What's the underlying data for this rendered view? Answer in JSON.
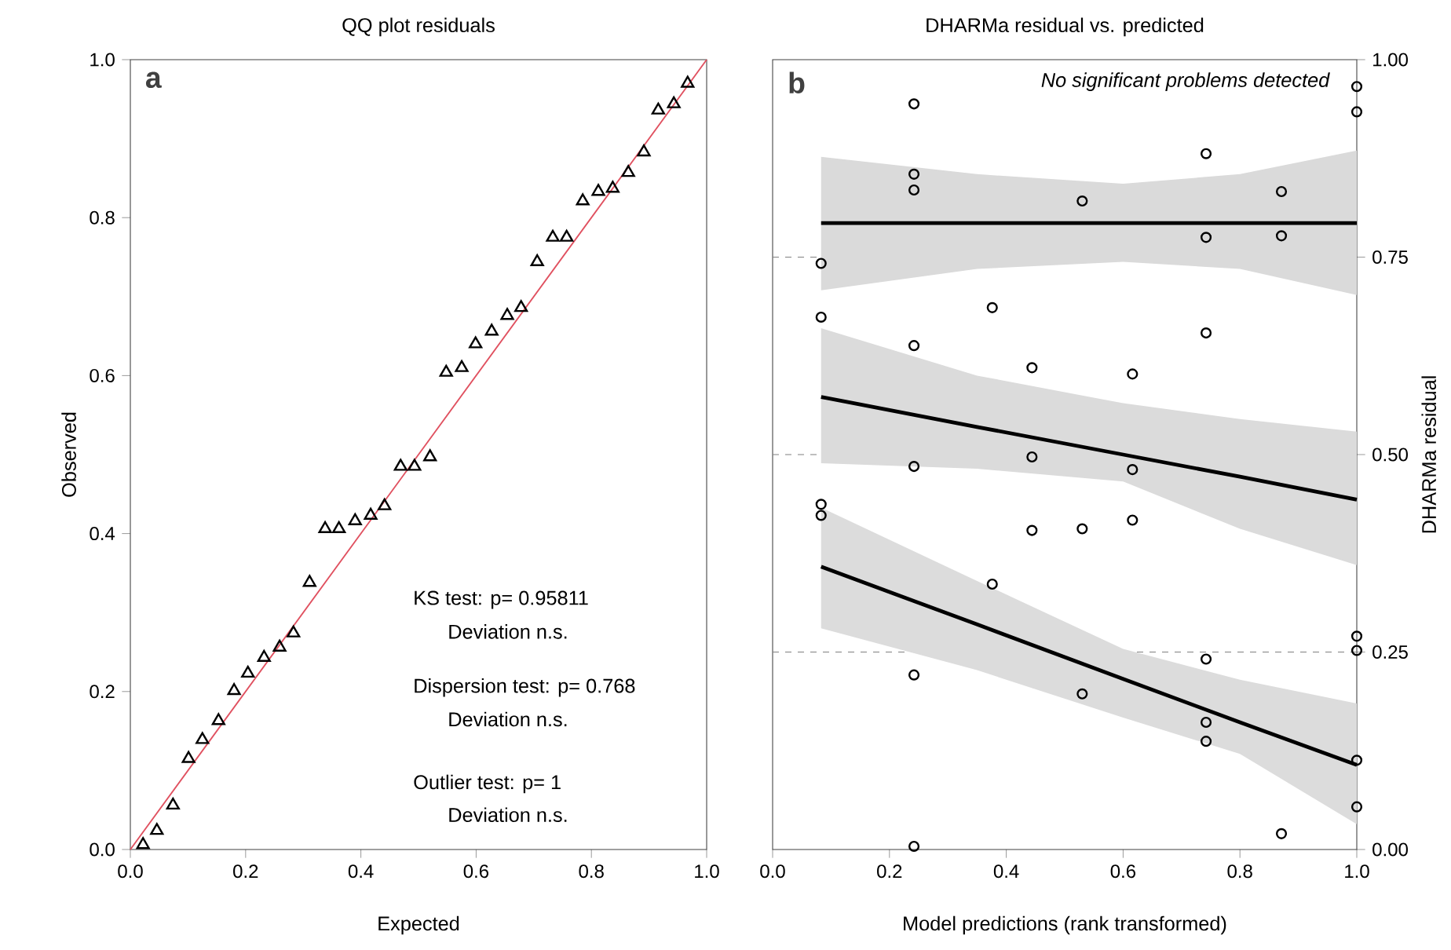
{
  "chart_data": [
    {
      "type": "scatter",
      "title": "QQ plot residuals",
      "xlabel": "Expected",
      "ylabel": "Observed",
      "xlim": [
        0,
        1
      ],
      "ylim": [
        0,
        1
      ],
      "xticks": [
        {
          "value": 0,
          "label": "0.0"
        },
        {
          "value": 0.2,
          "label": "0.2"
        },
        {
          "value": 0.4,
          "label": "0.4"
        },
        {
          "value": 0.6,
          "label": "0.6"
        },
        {
          "value": 0.8,
          "label": "0.8"
        },
        {
          "value": 1,
          "label": "1.0"
        }
      ],
      "yticks": [
        {
          "value": 0,
          "label": "0.0"
        },
        {
          "value": 0.2,
          "label": "0.2"
        },
        {
          "value": 0.4,
          "label": "0.4"
        },
        {
          "value": 0.6,
          "label": "0.6"
        },
        {
          "value": 0.8,
          "label": "0.8"
        },
        {
          "value": 1,
          "label": "1.0"
        }
      ],
      "annotations": [
        "a",
        "KS test: p= 0.95811",
        "Deviation  n.s.",
        "Dispersion test: p= 0.768",
        "Deviation  n.s.",
        "Outlier test: p= 1",
        "Deviation  n.s."
      ],
      "series": [
        {
          "type": "scatter",
          "color": "#000000",
          "marker": "triangle",
          "x": [
            0.022,
            0.046,
            0.074,
            0.101,
            0.125,
            0.153,
            0.18,
            0.204,
            0.232,
            0.259,
            0.283,
            0.311,
            0.338,
            0.362,
            0.39,
            0.417,
            0.441,
            0.469,
            0.493,
            0.52,
            0.548,
            0.575,
            0.599,
            0.627,
            0.654,
            0.678,
            0.706,
            0.733,
            0.757,
            0.785,
            0.812,
            0.837,
            0.864,
            0.891,
            0.916,
            0.943,
            0.967
          ],
          "values": [
            0.006,
            0.024,
            0.056,
            0.115,
            0.139,
            0.163,
            0.201,
            0.223,
            0.243,
            0.256,
            0.274,
            0.338,
            0.406,
            0.406,
            0.416,
            0.423,
            0.435,
            0.485,
            0.485,
            0.497,
            0.604,
            0.61,
            0.64,
            0.656,
            0.676,
            0.686,
            0.744,
            0.775,
            0.775,
            0.821,
            0.833,
            0.837,
            0.857,
            0.883,
            0.936,
            0.944,
            0.97
          ]
        },
        {
          "type": "line",
          "color": "#e0505f",
          "marker": "none",
          "line_style": "solid",
          "x": [
            0,
            1
          ],
          "values": [
            0,
            1
          ]
        }
      ]
    },
    {
      "type": "scatter",
      "title": "DHARMa residual vs. predicted",
      "xlabel": "Model predictions (rank transformed)",
      "ylabel": "DHARMa residual",
      "xlim": [
        0,
        1
      ],
      "ylim": [
        0,
        1
      ],
      "xticks": [
        {
          "value": 0,
          "label": "0.0"
        },
        {
          "value": 0.2,
          "label": "0.2"
        },
        {
          "value": 0.4,
          "label": "0.4"
        },
        {
          "value": 0.6,
          "label": "0.6"
        },
        {
          "value": 0.8,
          "label": "0.8"
        },
        {
          "value": 1,
          "label": "1.0"
        }
      ],
      "yticks": [
        {
          "value": 0,
          "label": "0.00"
        },
        {
          "value": 0.25,
          "label": "0.25"
        },
        {
          "value": 0.5,
          "label": "0.50"
        },
        {
          "value": 0.75,
          "label": "0.75"
        },
        {
          "value": 1,
          "label": "1.00"
        }
      ],
      "annotations": [
        "b",
        "*No significant problems detected*"
      ],
      "ref_lines": [
        {
          "axis": "y",
          "value": 0.25,
          "color": "#808080",
          "line_style": "dashed"
        },
        {
          "axis": "y",
          "value": 0.5,
          "color": "#808080",
          "line_style": "dashed"
        },
        {
          "axis": "y",
          "value": 0.75,
          "color": "#808080",
          "line_style": "dashed"
        }
      ],
      "series": [
        {
          "type": "line",
          "color": "#000000",
          "marker": "none",
          "line_style": "solid",
          "x": [
            0.083,
            0.35,
            0.6,
            0.8,
            1.0
          ],
          "values": [
            0.793,
            0.793,
            0.793,
            0.793,
            0.793
          ],
          "lower": [
            0.708,
            0.735,
            0.744,
            0.735,
            0.702
          ],
          "upper": [
            0.877,
            0.855,
            0.843,
            0.855,
            0.885
          ]
        },
        {
          "type": "line",
          "color": "#000000",
          "marker": "none",
          "line_style": "solid",
          "x": [
            0.083,
            0.35,
            0.6,
            0.8,
            1.0
          ],
          "values": [
            0.573,
            0.535,
            0.5,
            0.472,
            0.443
          ],
          "lower": [
            0.489,
            0.482,
            0.466,
            0.406,
            0.36
          ],
          "upper": [
            0.66,
            0.6,
            0.565,
            0.545,
            0.529
          ]
        },
        {
          "type": "line",
          "color": "#000000",
          "marker": "none",
          "line_style": "solid",
          "x": [
            0.083,
            0.35,
            0.6,
            0.8,
            1.0
          ],
          "values": [
            0.358,
            0.285,
            0.216,
            0.161,
            0.107
          ],
          "lower": [
            0.28,
            0.227,
            0.167,
            0.121,
            0.032
          ],
          "upper": [
            0.433,
            0.34,
            0.254,
            0.215,
            0.185
          ]
        },
        {
          "type": "scatter",
          "color": "#000000",
          "marker": "circle",
          "x": [
            0.083,
            0.083,
            0.083,
            0.083,
            0.242,
            0.242,
            0.242,
            0.242,
            0.242,
            0.242,
            0.242,
            0.376,
            0.376,
            0.444,
            0.444,
            0.444,
            0.53,
            0.53,
            0.53,
            0.616,
            0.616,
            0.616,
            0.742,
            0.742,
            0.742,
            0.742,
            0.742,
            0.742,
            0.871,
            0.871,
            0.871,
            1.0,
            1.0,
            1.0,
            1.0,
            1.0,
            1.0
          ],
          "values": [
            0.742,
            0.674,
            0.437,
            0.423,
            0.944,
            0.855,
            0.835,
            0.638,
            0.485,
            0.221,
            0.004,
            0.686,
            0.336,
            0.61,
            0.497,
            0.404,
            0.821,
            0.406,
            0.197,
            0.602,
            0.481,
            0.417,
            0.881,
            0.775,
            0.654,
            0.241,
            0.161,
            0.137,
            0.833,
            0.777,
            0.02,
            0.966,
            0.934,
            0.27,
            0.252,
            0.113,
            0.054
          ]
        }
      ]
    }
  ]
}
